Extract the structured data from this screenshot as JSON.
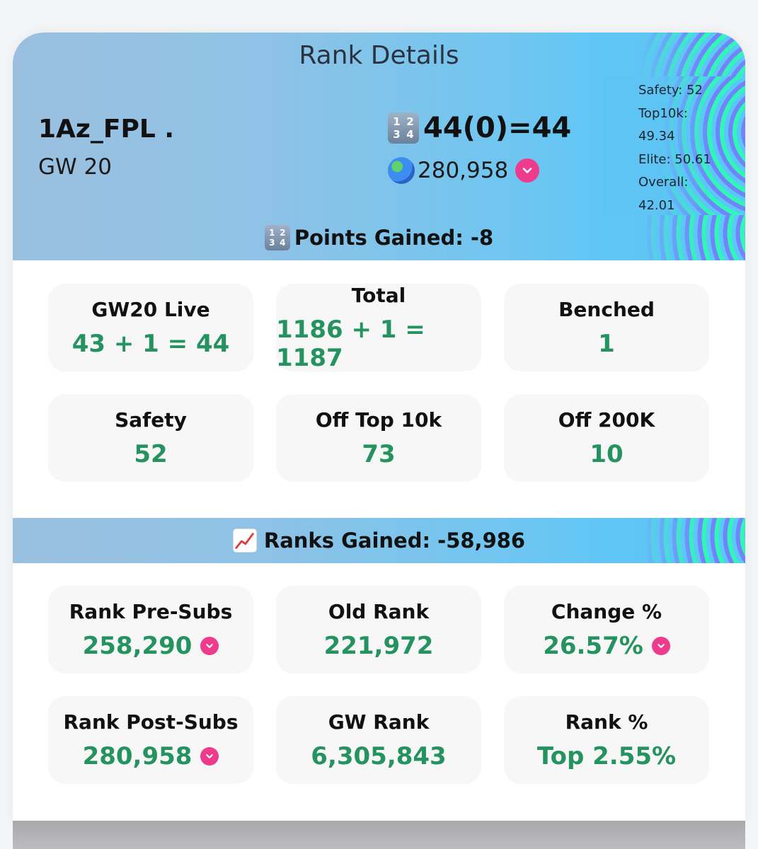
{
  "header": {
    "title": "Rank Details",
    "team_name": "1Az_FPL .",
    "gameweek": "GW 20",
    "score_icon_digits": [
      "1",
      "2",
      "3",
      "4"
    ],
    "score": "44(0)=44",
    "overall_rank": "280,958",
    "rank_trend": "down"
  },
  "stats_panel": {
    "lines": [
      "Safety: 52",
      "Top10k:",
      "49.34",
      "Elite: 50.61",
      "Overall:",
      "42.01"
    ]
  },
  "points_section": {
    "title": "Points Gained: -8",
    "tiles": [
      {
        "label": "GW20 Live",
        "value": "43 + 1 = 44"
      },
      {
        "label": "Total",
        "value": "1186 + 1 = 1187"
      },
      {
        "label": "Benched",
        "value": "1"
      },
      {
        "label": "Safety",
        "value": "52"
      },
      {
        "label": "Off Top 10k",
        "value": "73"
      },
      {
        "label": "Off 200K",
        "value": "10"
      }
    ]
  },
  "ranks_section": {
    "title": "Ranks Gained: -58,986",
    "tiles": [
      {
        "label": "Rank Pre-Subs",
        "value": "258,290",
        "trend": "down"
      },
      {
        "label": "Old Rank",
        "value": "221,972"
      },
      {
        "label": "Change %",
        "value": "26.57%",
        "trend": "down"
      },
      {
        "label": "Rank Post-Subs",
        "value": "280,958",
        "trend": "down"
      },
      {
        "label": "GW Rank",
        "value": "6,305,843"
      },
      {
        "label": "Rank %",
        "value": "Top 2.55%"
      }
    ]
  },
  "colors": {
    "accent_green": "#25935f",
    "down_badge": "#ef3b8c",
    "header_gradient_start": "#9bc0df",
    "header_gradient_end": "#5fc6f6"
  },
  "icons": {
    "score_icon": "input-numbers-icon",
    "rank_icon": "globe-icon",
    "trend_icon": "chevron-down-icon",
    "ranks_icon": "chart-increasing-icon"
  }
}
